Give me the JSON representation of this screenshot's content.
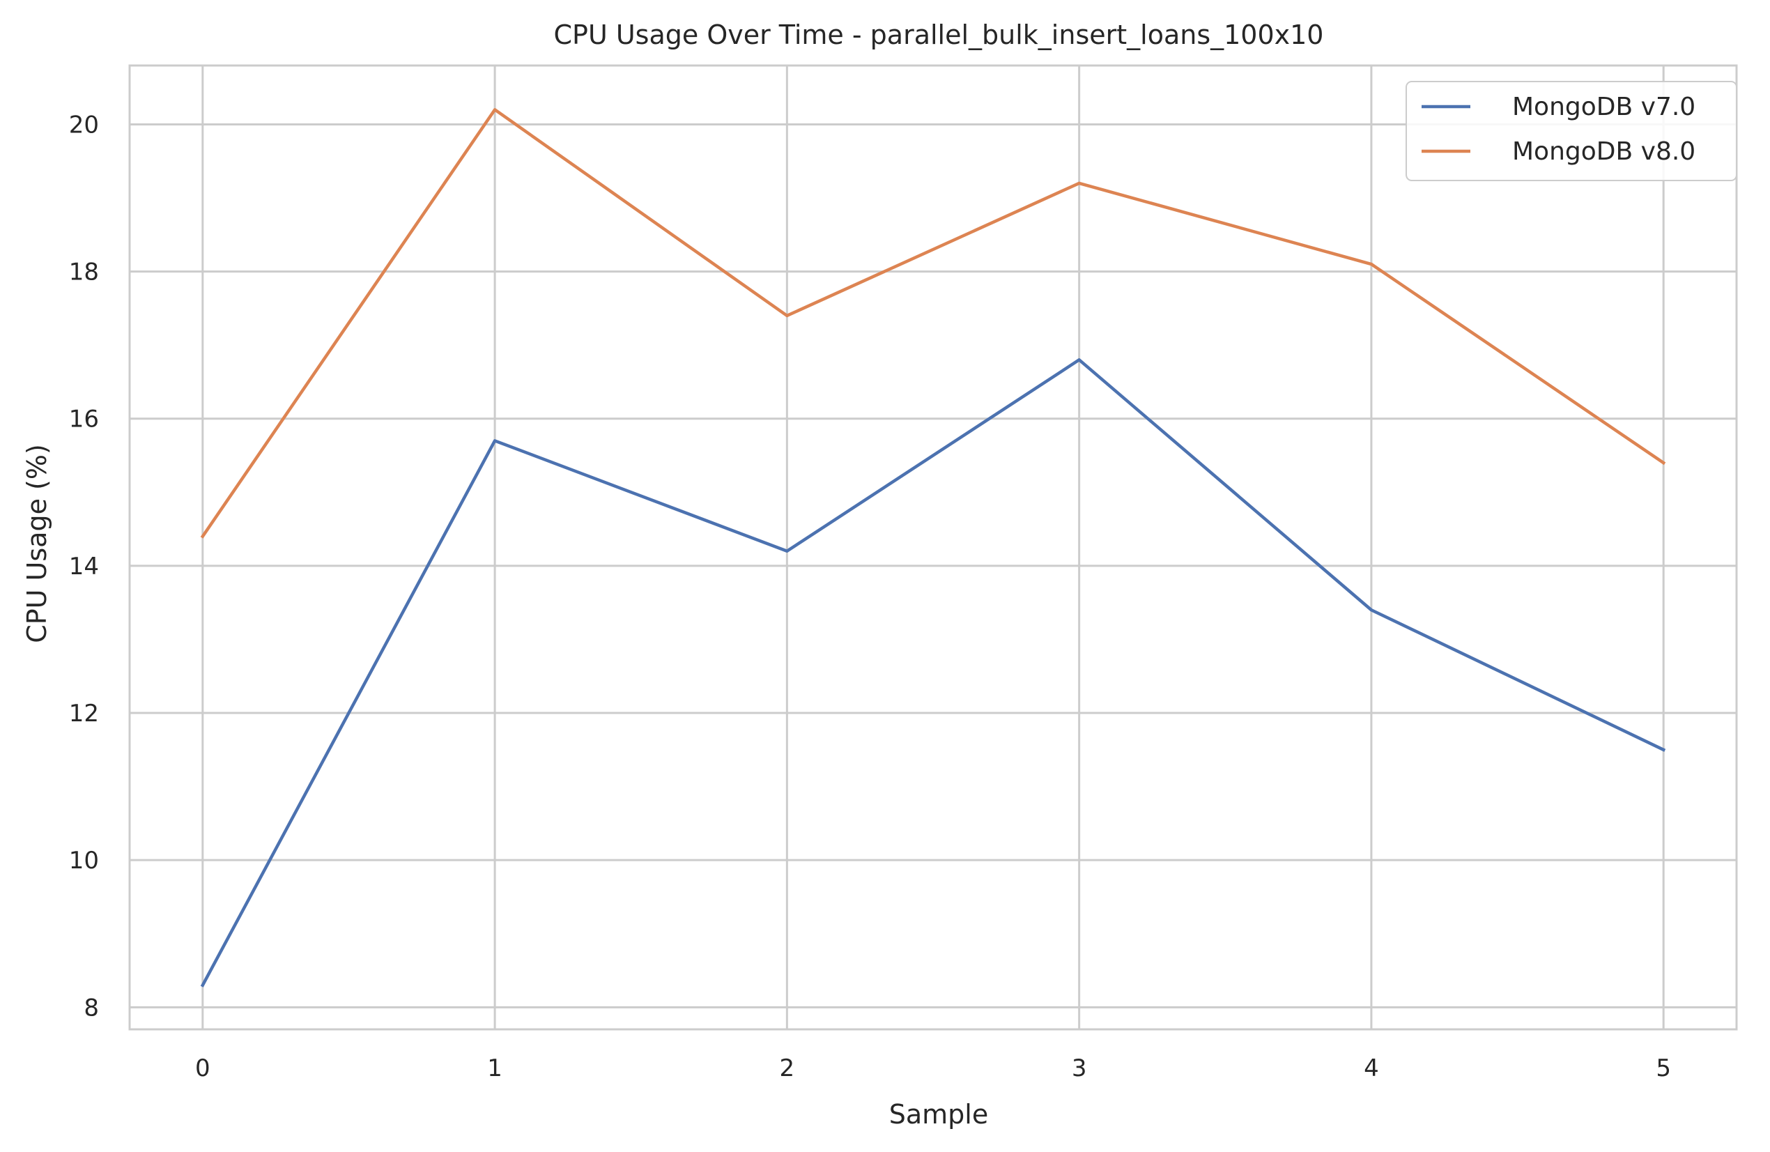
{
  "chart_data": {
    "type": "line",
    "title": "CPU Usage Over Time - parallel_bulk_insert_loans_100x10",
    "xlabel": "Sample",
    "ylabel": "CPU Usage (%)",
    "x": [
      0,
      1,
      2,
      3,
      4,
      5
    ],
    "x_ticks": [
      "0",
      "1",
      "2",
      "3",
      "4",
      "5"
    ],
    "y_ticks": [
      "8",
      "10",
      "12",
      "14",
      "16",
      "18",
      "20"
    ],
    "xlim": [
      -0.25,
      5.25
    ],
    "ylim": [
      7.7,
      20.8
    ],
    "grid": true,
    "legend_position": "top-right",
    "series": [
      {
        "name": "MongoDB v7.0",
        "color": "#4c72b0",
        "values": [
          8.3,
          15.7,
          14.2,
          16.8,
          13.4,
          11.5
        ]
      },
      {
        "name": "MongoDB v8.0",
        "color": "#dd8452",
        "values": [
          14.4,
          20.2,
          17.4,
          19.2,
          18.1,
          15.4
        ]
      }
    ]
  }
}
